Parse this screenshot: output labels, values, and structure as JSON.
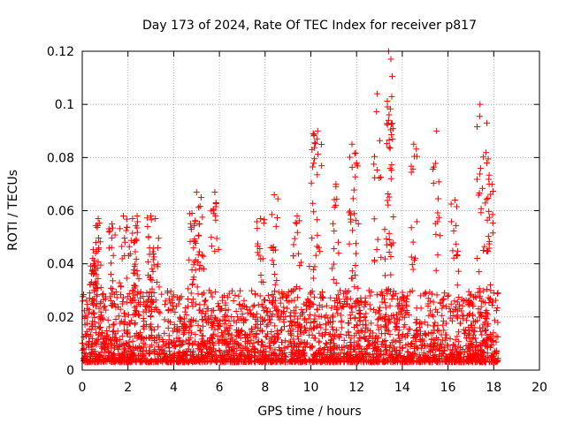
{
  "chart_data": {
    "type": "scatter",
    "title": "Day 173 of 2024, Rate Of TEC Index for receiver p817",
    "xlabel": "GPS time / hours",
    "ylabel": "ROTI / TECUs",
    "xlim": [
      0,
      20
    ],
    "ylim": [
      0,
      0.12
    ],
    "x_ticks": [
      0,
      2,
      4,
      6,
      8,
      10,
      12,
      14,
      16,
      18,
      20
    ],
    "y_ticks": [
      0,
      0.02,
      0.04,
      0.06,
      0.08,
      0.1,
      0.12
    ],
    "grid": true,
    "marker": "+",
    "color": "#ff0000",
    "series": [
      {
        "name": "ROTI",
        "note": "dense cloud of points between 0.003 and ~0.03 TECU from 0 to 18.2 h, with individual spikes listed below",
        "x_range": [
          0,
          18.2
        ],
        "baseline_range": [
          0.003,
          0.03
        ],
        "spikes": [
          {
            "x": 0.5,
            "y": 0.04
          },
          {
            "x": 0.6,
            "y": 0.048
          },
          {
            "x": 0.7,
            "y": 0.057
          },
          {
            "x": 1.3,
            "y": 0.055
          },
          {
            "x": 1.8,
            "y": 0.058
          },
          {
            "x": 2.2,
            "y": 0.057
          },
          {
            "x": 2.4,
            "y": 0.058
          },
          {
            "x": 3.0,
            "y": 0.058
          },
          {
            "x": 3.2,
            "y": 0.057
          },
          {
            "x": 4.8,
            "y": 0.059
          },
          {
            "x": 5.0,
            "y": 0.067
          },
          {
            "x": 5.2,
            "y": 0.065
          },
          {
            "x": 5.8,
            "y": 0.067
          },
          {
            "x": 7.8,
            "y": 0.057
          },
          {
            "x": 8.4,
            "y": 0.066
          },
          {
            "x": 9.4,
            "y": 0.058
          },
          {
            "x": 10.1,
            "y": 0.089
          },
          {
            "x": 10.3,
            "y": 0.09
          },
          {
            "x": 11.1,
            "y": 0.07
          },
          {
            "x": 11.8,
            "y": 0.085
          },
          {
            "x": 12.0,
            "y": 0.078
          },
          {
            "x": 12.9,
            "y": 0.104
          },
          {
            "x": 13.4,
            "y": 0.12
          },
          {
            "x": 13.5,
            "y": 0.117
          },
          {
            "x": 13.4,
            "y": 0.094
          },
          {
            "x": 14.5,
            "y": 0.085
          },
          {
            "x": 15.5,
            "y": 0.09
          },
          {
            "x": 16.3,
            "y": 0.064
          },
          {
            "x": 17.4,
            "y": 0.1
          },
          {
            "x": 17.7,
            "y": 0.093
          },
          {
            "x": 17.8,
            "y": 0.07
          }
        ]
      }
    ]
  }
}
